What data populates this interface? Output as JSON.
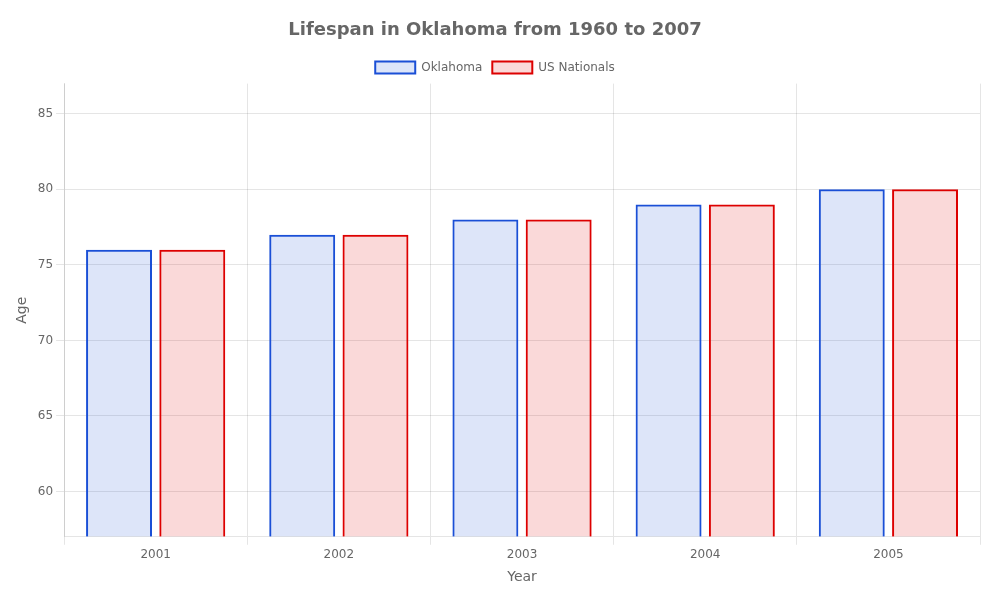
{
  "chart_data": {
    "type": "bar",
    "title": "Lifespan in Oklahoma from 1960 to 2007",
    "x_label": "Year",
    "y_label": "Age",
    "categories": [
      "2001",
      "2002",
      "2003",
      "2004",
      "2005"
    ],
    "series": [
      {
        "name": "Oklahoma",
        "color": "#1a4fd6",
        "values": [
          76,
          77,
          78,
          79,
          80
        ]
      },
      {
        "name": "US Nationals",
        "color": "#dd0000",
        "values": [
          76,
          77,
          78,
          79,
          80
        ]
      }
    ],
    "ylim": [
      57,
      87
    ],
    "yticks": [
      60,
      65,
      70,
      75,
      80,
      85
    ],
    "grid": true,
    "legend": "top"
  }
}
